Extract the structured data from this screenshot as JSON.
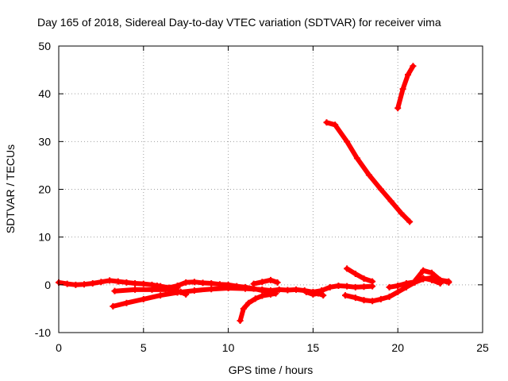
{
  "chart_data": {
    "type": "line",
    "title": "Day 165 of 2018, Sidereal Day-to-day VTEC variation (SDTVAR) for receiver vima",
    "xlabel": "GPS time / hours",
    "ylabel": "SDTVAR / TECUs",
    "xlim": [
      0,
      25
    ],
    "ylim": [
      -10,
      50
    ],
    "xticks": [
      0,
      5,
      10,
      15,
      20,
      25
    ],
    "yticks": [
      -10,
      0,
      10,
      20,
      30,
      40,
      50
    ],
    "xtick_labels": [
      "0",
      "5",
      "10",
      "15",
      "20",
      "25"
    ],
    "ytick_labels": [
      "-10",
      "0",
      "10",
      "20",
      "30",
      "40",
      "50"
    ],
    "grid": true,
    "legend": "none",
    "color": "#ff0000",
    "series": [
      {
        "x": [
          0.0,
          0.5,
          1.0,
          1.5,
          2.0,
          2.5,
          3.0,
          3.5,
          4.0,
          4.5,
          5.0,
          5.5,
          6.0,
          6.5,
          7.0,
          7.5,
          8.0,
          8.5,
          9.0,
          9.5,
          10.0,
          10.5,
          11.0,
          11.5,
          12.0,
          12.5
        ],
        "y": [
          0.5,
          0.2,
          0.0,
          0.1,
          0.3,
          0.6,
          0.9,
          0.7,
          0.5,
          0.3,
          0.2,
          0.0,
          -0.3,
          -0.6,
          -0.2,
          0.5,
          0.6,
          0.4,
          0.3,
          0.1,
          0.0,
          -0.3,
          -0.5,
          -0.8,
          -1.2,
          -1.5
        ]
      },
      {
        "x": [
          3.2,
          4.0,
          5.0,
          6.0,
          7.0,
          8.0,
          9.0,
          10.0,
          11.0,
          12.0,
          12.8
        ],
        "y": [
          -4.5,
          -3.8,
          -3.0,
          -2.2,
          -1.6,
          -1.2,
          -0.9,
          -0.7,
          -0.8,
          -1.0,
          -1.3
        ]
      },
      {
        "x": [
          3.3,
          4.5,
          5.5,
          6.3,
          7.0
        ],
        "y": [
          -1.3,
          -1.0,
          -1.0,
          -1.0,
          -0.6
        ]
      },
      {
        "x": [
          5.8,
          6.5,
          7.2,
          7.5
        ],
        "y": [
          -0.2,
          -1.0,
          -1.5,
          -2.0
        ]
      },
      {
        "x": [
          10.7,
          10.9,
          11.2,
          11.6,
          12.0,
          12.5,
          12.8
        ],
        "y": [
          -7.5,
          -5.0,
          -3.8,
          -2.9,
          -2.3,
          -2.0,
          -1.8
        ]
      },
      {
        "x": [
          11.5,
          12.0,
          12.5,
          12.9
        ],
        "y": [
          0.2,
          0.6,
          1.0,
          0.5
        ]
      },
      {
        "x": [
          12.5,
          13.0,
          13.5,
          14.0,
          14.5,
          15.0,
          15.5,
          16.0,
          16.5,
          17.0,
          17.5,
          18.0,
          18.5
        ],
        "y": [
          -1.2,
          -1.0,
          -1.1,
          -1.0,
          -1.2,
          -1.5,
          -1.2,
          -0.5,
          -0.2,
          -0.3,
          -0.5,
          -0.4,
          -0.3
        ]
      },
      {
        "x": [
          14.6,
          15.0,
          15.3,
          15.6
        ],
        "y": [
          -1.5,
          -2.0,
          -1.8,
          -2.2
        ]
      },
      {
        "x": [
          17.0,
          17.5,
          18.0,
          18.5
        ],
        "y": [
          3.4,
          2.3,
          1.3,
          0.7
        ]
      },
      {
        "x": [
          16.9,
          17.5,
          18.0,
          18.5,
          19.0,
          19.5,
          20.0,
          20.5,
          21.0,
          21.5,
          22.0,
          22.5,
          23.0
        ],
        "y": [
          -2.2,
          -2.7,
          -3.2,
          -3.4,
          -3.0,
          -2.5,
          -1.5,
          -0.5,
          0.5,
          1.2,
          1.5,
          1.0,
          0.7
        ]
      },
      {
        "x": [
          19.5,
          20.0,
          20.5,
          21.0,
          21.5,
          22.0,
          22.5
        ],
        "y": [
          -0.5,
          -0.2,
          0.3,
          0.6,
          1.4,
          1.0,
          0.3
        ]
      },
      {
        "x": [
          21.0,
          21.5,
          22.0,
          22.5,
          23.0
        ],
        "y": [
          0.8,
          3.0,
          2.5,
          1.0,
          0.5
        ]
      },
      {
        "x": [
          15.8,
          16.3,
          17.0,
          17.6,
          18.3,
          19.0,
          19.6,
          20.2,
          20.7
        ],
        "y": [
          34.0,
          33.5,
          30.0,
          26.5,
          23.0,
          20.0,
          17.5,
          15.0,
          13.2
        ]
      },
      {
        "x": [
          20.0,
          20.3,
          20.6,
          20.9
        ],
        "y": [
          37.0,
          41.0,
          44.0,
          45.8
        ]
      }
    ]
  }
}
